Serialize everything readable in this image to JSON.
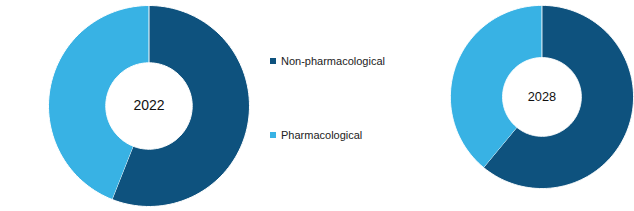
{
  "chart_data": [
    {
      "type": "pie",
      "title": "2022",
      "categories": [
        "Non-pharmacological",
        "Pharmacological"
      ],
      "values": [
        56,
        44
      ],
      "colors": [
        "#0e527e",
        "#38b2e4"
      ]
    },
    {
      "type": "pie",
      "title": "2028",
      "categories": [
        "Non-pharmacological",
        "Pharmacological"
      ],
      "values": [
        61,
        39
      ],
      "colors": [
        "#0e527e",
        "#38b2e4"
      ]
    }
  ]
}
